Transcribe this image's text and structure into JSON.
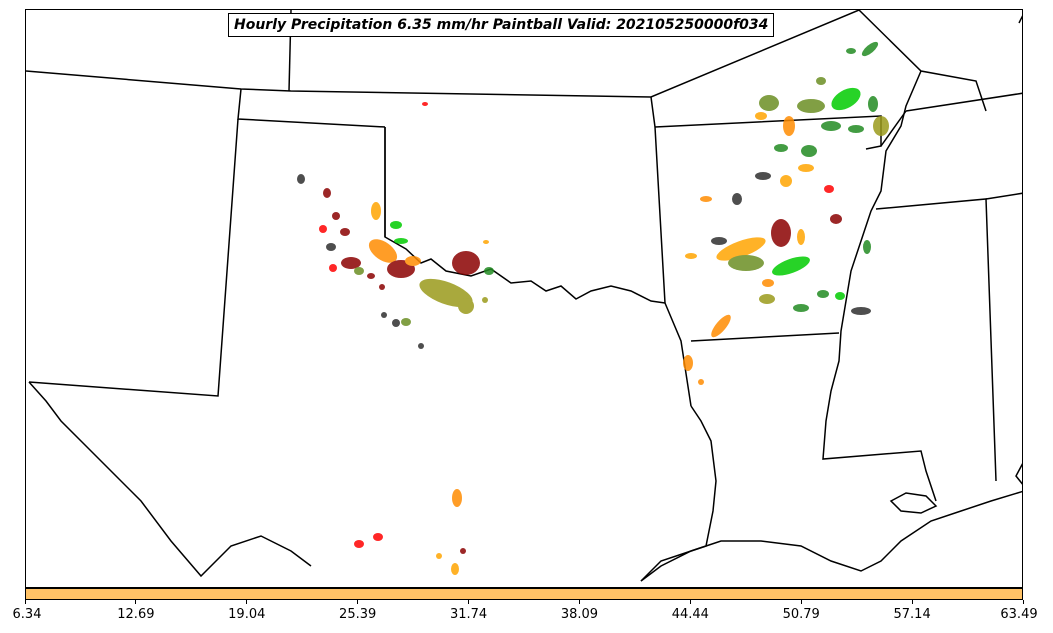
{
  "title": "Hourly Precipitation 6.35 mm/hr Paintball Valid: 202105250000f034",
  "colorbar": {
    "color": "#ffc266",
    "ticks": [
      "6.34",
      "12.69",
      "19.04",
      "25.39",
      "31.74",
      "38.09",
      "44.44",
      "50.79",
      "57.14",
      "63.49"
    ]
  },
  "colors": {
    "border": "#000000",
    "paintball": [
      "#ff0000",
      "#ff8c00",
      "#ffa500",
      "#8b0000",
      "#6b8e23",
      "#9a9a1a",
      "#00cc00",
      "#228b22",
      "#2f2f2f",
      "#cd853f"
    ]
  }
}
